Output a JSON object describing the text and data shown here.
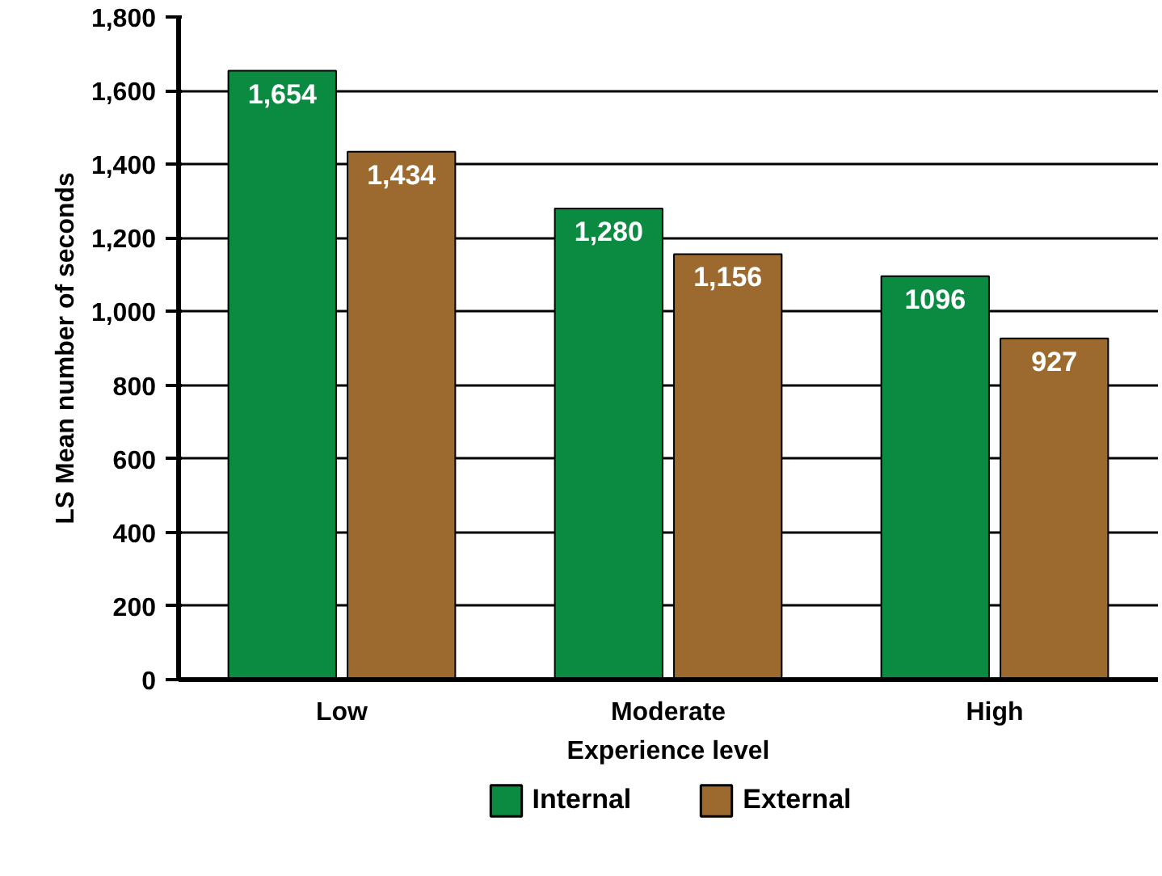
{
  "chart_data": {
    "type": "bar",
    "xlabel": "Experience level",
    "ylabel": "LS Mean number of seconds",
    "categories": [
      "Low",
      "Moderate",
      "High"
    ],
    "series": [
      {
        "name": "Internal",
        "color": "#0b8a42",
        "values": [
          1654,
          1280,
          1096
        ],
        "value_labels": [
          "1,654",
          "1,280",
          "1096"
        ]
      },
      {
        "name": "External",
        "color": "#9c6a2f",
        "values": [
          1434,
          1156,
          927
        ],
        "value_labels": [
          "1,434",
          "1,156",
          "927"
        ]
      }
    ],
    "ylim": [
      0,
      1800
    ],
    "yticks": [
      {
        "value": 0,
        "label": "0"
      },
      {
        "value": 200,
        "label": "200"
      },
      {
        "value": 400,
        "label": "400"
      },
      {
        "value": 600,
        "label": "600"
      },
      {
        "value": 800,
        "label": "800"
      },
      {
        "value": 1000,
        "label": "1,000"
      },
      {
        "value": 1200,
        "label": "1,200"
      },
      {
        "value": 1400,
        "label": "1,400"
      },
      {
        "value": 1600,
        "label": "1,600"
      },
      {
        "value": 1800,
        "label": "1,800"
      }
    ],
    "grid": "y",
    "legend": "bottom"
  }
}
